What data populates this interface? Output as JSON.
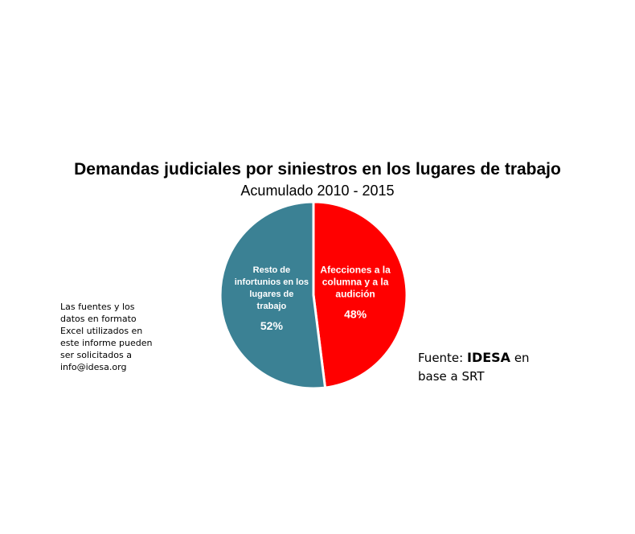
{
  "chart_data": {
    "type": "pie",
    "title": "Demandas judiciales por siniestros en los lugares de trabajo",
    "subtitle": "Acumulado 2010 - 2015",
    "slices": [
      {
        "label_lines": [
          "Afecciones a la",
          "columna y a la",
          "audición"
        ],
        "value": 48,
        "value_label": "48%",
        "color": "#ff0000"
      },
      {
        "label_lines": [
          "Resto de",
          "infortunios en los",
          "lugares de",
          "trabajo"
        ],
        "value": 52,
        "value_label": "52%",
        "color": "#3b8194"
      }
    ],
    "legend": "none"
  },
  "notes": {
    "excel_note_lines": [
      "Las fuentes y los",
      "datos en formato",
      "Excel utilizados en",
      "este informe pueden",
      "ser solicitados a",
      "info@idesa.org"
    ],
    "source_prefix": "Fuente: ",
    "source_brand": "IDESA",
    "source_suffix": " en",
    "source_line2": "base a SRT"
  },
  "colors": {
    "slice_border": "#ffffff",
    "label_text": "#ffffff"
  }
}
